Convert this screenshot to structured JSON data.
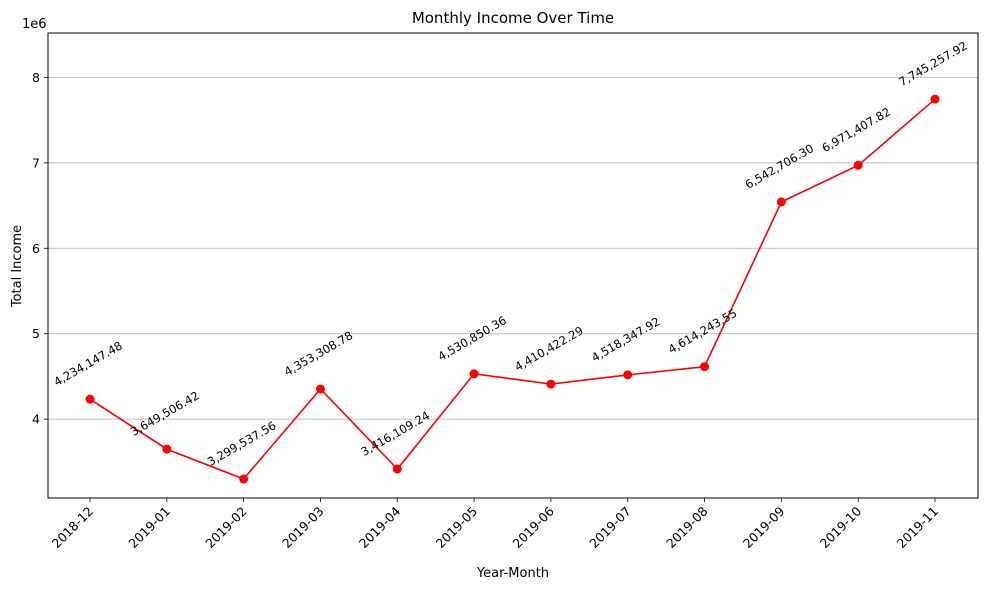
{
  "chart_data": {
    "type": "line",
    "title": "Monthly Income Over Time",
    "xlabel": "Year-Month",
    "ylabel": "Total Income",
    "y_offset_label": "1e6",
    "categories": [
      "2018-12",
      "2019-01",
      "2019-02",
      "2019-03",
      "2019-04",
      "2019-05",
      "2019-06",
      "2019-07",
      "2019-08",
      "2019-09",
      "2019-10",
      "2019-11"
    ],
    "values": [
      4234147.48,
      3649506.42,
      3299537.56,
      4353308.78,
      3416109.24,
      4530850.36,
      4410422.29,
      4518347.92,
      4614243.55,
      6542706.3,
      6971407.82,
      7745257.92
    ],
    "data_labels": [
      "4,234,147.48",
      "3,649,506.42",
      "3,299,537.56",
      "4,353,308.78",
      "3,416,109.24",
      "4,530,850.36",
      "4,410,422.29",
      "4,518,347.92",
      "4,614,243.55",
      "6,542,706.30",
      "6,971,407.82",
      "7,745,257.92"
    ],
    "yticks": [
      4,
      5,
      6,
      7,
      8
    ],
    "ylim": [
      3077250,
      8519471
    ],
    "grid": "horizontal",
    "line_color": "#ff0000",
    "marker_color": "#ff0000"
  }
}
